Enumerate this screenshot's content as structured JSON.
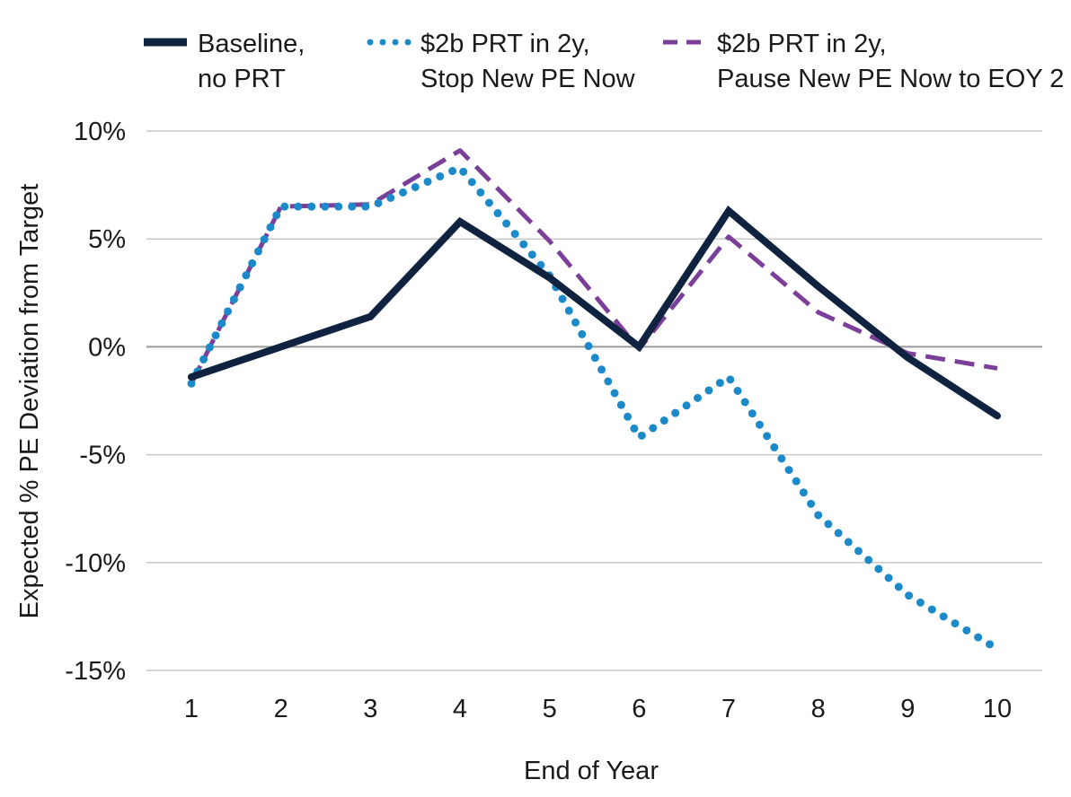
{
  "chart_data": {
    "type": "line",
    "xlabel": "End of Year",
    "ylabel": "Expected % PE Deviation from Target",
    "x": [
      1,
      2,
      3,
      4,
      5,
      6,
      7,
      8,
      9,
      10
    ],
    "xticks": [
      "1",
      "2",
      "3",
      "4",
      "5",
      "6",
      "7",
      "8",
      "9",
      "10"
    ],
    "ylim": [
      -15,
      10
    ],
    "yticks": [
      10,
      5,
      0,
      -5,
      -10,
      -15
    ],
    "ytick_labels": [
      "10%",
      "5%",
      "0%",
      "-5%",
      "-10%",
      "-15%"
    ],
    "grid": true,
    "legend_position": "top",
    "series": [
      {
        "name": "Baseline, no PRT",
        "name_lines": [
          "Baseline,",
          "no PRT"
        ],
        "color": "#0f2340",
        "style": "solid",
        "values": [
          -1.4,
          0.0,
          1.4,
          5.8,
          3.2,
          0.0,
          6.3,
          2.8,
          -0.5,
          -3.2
        ]
      },
      {
        "name": "$2b PRT in 2y, Stop New PE Now",
        "name_lines": [
          "$2b PRT in 2y,",
          "Stop New PE Now"
        ],
        "color": "#1c8ac9",
        "style": "dotted",
        "values": [
          -1.7,
          6.5,
          6.5,
          8.3,
          3.3,
          -4.2,
          -1.4,
          -7.8,
          -11.5,
          -14.0
        ]
      },
      {
        "name": "$2b PRT in 2y, Pause New PE Now to EOY 2",
        "name_lines": [
          "$2b PRT in 2y,",
          "Pause New PE Now to EOY 2"
        ],
        "color": "#7b3f99",
        "style": "dashed",
        "values": [
          -1.7,
          6.5,
          6.6,
          9.1,
          4.9,
          -0.1,
          5.1,
          1.6,
          -0.3,
          -1.0
        ]
      }
    ]
  }
}
